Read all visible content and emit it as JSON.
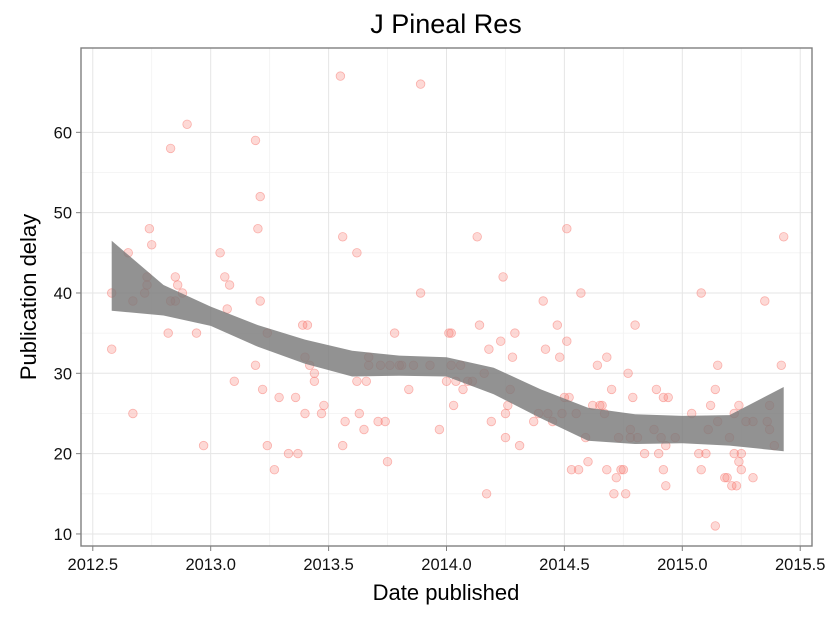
{
  "chart_data": {
    "type": "scatter",
    "title": "J Pineal Res",
    "xlabel": "Date published",
    "ylabel": "Publication delay",
    "xlim": [
      2012.45,
      2015.55
    ],
    "ylim": [
      8.5,
      70.5
    ],
    "x_ticks": [
      2012.5,
      2013.0,
      2013.5,
      2014.0,
      2014.5,
      2015.0,
      2015.5
    ],
    "x_tick_labels": [
      "2012.5",
      "2013.0",
      "2013.5",
      "2014.0",
      "2014.5",
      "2015.0",
      "2015.5"
    ],
    "y_ticks": [
      10,
      20,
      30,
      40,
      50,
      60
    ],
    "y_tick_labels": [
      "10",
      "20",
      "30",
      "40",
      "50",
      "60"
    ],
    "grid": true,
    "point_color": "#f8766d",
    "smooth_band_color": "#7a7a7a",
    "points": [
      [
        2012.58,
        40
      ],
      [
        2012.58,
        33
      ],
      [
        2012.65,
        45
      ],
      [
        2012.67,
        25
      ],
      [
        2012.67,
        39
      ],
      [
        2012.72,
        40
      ],
      [
        2012.73,
        41
      ],
      [
        2012.73,
        42
      ],
      [
        2012.74,
        48
      ],
      [
        2012.75,
        46
      ],
      [
        2012.82,
        35
      ],
      [
        2012.83,
        58
      ],
      [
        2012.83,
        39
      ],
      [
        2012.85,
        42
      ],
      [
        2012.85,
        39
      ],
      [
        2012.86,
        41
      ],
      [
        2012.88,
        40
      ],
      [
        2012.9,
        61
      ],
      [
        2012.94,
        35
      ],
      [
        2012.97,
        21
      ],
      [
        2013.04,
        45
      ],
      [
        2013.06,
        42
      ],
      [
        2013.07,
        38
      ],
      [
        2013.08,
        41
      ],
      [
        2013.1,
        29
      ],
      [
        2013.19,
        59
      ],
      [
        2013.19,
        31
      ],
      [
        2013.2,
        48
      ],
      [
        2013.21,
        52
      ],
      [
        2013.21,
        39
      ],
      [
        2013.22,
        28
      ],
      [
        2013.24,
        21
      ],
      [
        2013.24,
        35
      ],
      [
        2013.27,
        18
      ],
      [
        2013.29,
        27
      ],
      [
        2013.33,
        20
      ],
      [
        2013.36,
        27
      ],
      [
        2013.37,
        20
      ],
      [
        2013.39,
        36
      ],
      [
        2013.4,
        32
      ],
      [
        2013.4,
        25
      ],
      [
        2013.41,
        36
      ],
      [
        2013.42,
        31
      ],
      [
        2013.44,
        30
      ],
      [
        2013.44,
        29
      ],
      [
        2013.47,
        25
      ],
      [
        2013.48,
        26
      ],
      [
        2013.55,
        67
      ],
      [
        2013.56,
        47
      ],
      [
        2013.56,
        21
      ],
      [
        2013.57,
        24
      ],
      [
        2013.62,
        45
      ],
      [
        2013.62,
        29
      ],
      [
        2013.63,
        25
      ],
      [
        2013.65,
        23
      ],
      [
        2013.66,
        29
      ],
      [
        2013.67,
        31
      ],
      [
        2013.67,
        32
      ],
      [
        2013.71,
        24
      ],
      [
        2013.72,
        31
      ],
      [
        2013.74,
        24
      ],
      [
        2013.75,
        19
      ],
      [
        2013.76,
        31
      ],
      [
        2013.78,
        35
      ],
      [
        2013.8,
        31
      ],
      [
        2013.81,
        31
      ],
      [
        2013.84,
        28
      ],
      [
        2013.86,
        31
      ],
      [
        2013.89,
        66
      ],
      [
        2013.89,
        40
      ],
      [
        2013.93,
        31
      ],
      [
        2013.97,
        23
      ],
      [
        2014.0,
        29
      ],
      [
        2014.01,
        35
      ],
      [
        2014.02,
        35
      ],
      [
        2014.02,
        31
      ],
      [
        2014.03,
        26
      ],
      [
        2014.04,
        29
      ],
      [
        2014.06,
        31
      ],
      [
        2014.07,
        28
      ],
      [
        2014.09,
        29
      ],
      [
        2014.11,
        29
      ],
      [
        2014.13,
        47
      ],
      [
        2014.14,
        36
      ],
      [
        2014.16,
        30
      ],
      [
        2014.17,
        15
      ],
      [
        2014.18,
        33
      ],
      [
        2014.19,
        24
      ],
      [
        2014.23,
        34
      ],
      [
        2014.24,
        42
      ],
      [
        2014.25,
        25
      ],
      [
        2014.25,
        22
      ],
      [
        2014.26,
        26
      ],
      [
        2014.27,
        28
      ],
      [
        2014.28,
        32
      ],
      [
        2014.29,
        35
      ],
      [
        2014.31,
        21
      ],
      [
        2014.37,
        24
      ],
      [
        2014.39,
        25
      ],
      [
        2014.41,
        39
      ],
      [
        2014.42,
        33
      ],
      [
        2014.43,
        25
      ],
      [
        2014.45,
        24
      ],
      [
        2014.47,
        36
      ],
      [
        2014.48,
        32
      ],
      [
        2014.49,
        25
      ],
      [
        2014.5,
        27
      ],
      [
        2014.51,
        34
      ],
      [
        2014.51,
        48
      ],
      [
        2014.52,
        27
      ],
      [
        2014.53,
        18
      ],
      [
        2014.55,
        25
      ],
      [
        2014.56,
        18
      ],
      [
        2014.57,
        40
      ],
      [
        2014.59,
        22
      ],
      [
        2014.6,
        19
      ],
      [
        2014.62,
        26
      ],
      [
        2014.64,
        31
      ],
      [
        2014.65,
        26
      ],
      [
        2014.66,
        26
      ],
      [
        2014.67,
        25
      ],
      [
        2014.68,
        18
      ],
      [
        2014.68,
        32
      ],
      [
        2014.7,
        28
      ],
      [
        2014.71,
        15
      ],
      [
        2014.72,
        17
      ],
      [
        2014.73,
        22
      ],
      [
        2014.74,
        18
      ],
      [
        2014.75,
        18
      ],
      [
        2014.76,
        15
      ],
      [
        2014.77,
        30
      ],
      [
        2014.78,
        23
      ],
      [
        2014.78,
        22
      ],
      [
        2014.79,
        27
      ],
      [
        2014.8,
        36
      ],
      [
        2014.81,
        22
      ],
      [
        2014.84,
        20
      ],
      [
        2014.88,
        23
      ],
      [
        2014.89,
        28
      ],
      [
        2014.9,
        20
      ],
      [
        2014.91,
        22
      ],
      [
        2014.92,
        27
      ],
      [
        2014.92,
        18
      ],
      [
        2014.93,
        16
      ],
      [
        2014.93,
        21
      ],
      [
        2014.94,
        27
      ],
      [
        2014.97,
        22
      ],
      [
        2015.04,
        25
      ],
      [
        2015.07,
        20
      ],
      [
        2015.08,
        40
      ],
      [
        2015.08,
        18
      ],
      [
        2015.1,
        20
      ],
      [
        2015.11,
        23
      ],
      [
        2015.12,
        26
      ],
      [
        2015.14,
        11
      ],
      [
        2015.14,
        28
      ],
      [
        2015.15,
        31
      ],
      [
        2015.15,
        24
      ],
      [
        2015.18,
        17
      ],
      [
        2015.19,
        17
      ],
      [
        2015.2,
        22
      ],
      [
        2015.21,
        16
      ],
      [
        2015.22,
        25
      ],
      [
        2015.22,
        20
      ],
      [
        2015.23,
        16
      ],
      [
        2015.24,
        26
      ],
      [
        2015.24,
        19
      ],
      [
        2015.25,
        20
      ],
      [
        2015.25,
        18
      ],
      [
        2015.27,
        24
      ],
      [
        2015.3,
        17
      ],
      [
        2015.3,
        24
      ],
      [
        2015.35,
        39
      ],
      [
        2015.36,
        24
      ],
      [
        2015.37,
        23
      ],
      [
        2015.37,
        26
      ],
      [
        2015.39,
        21
      ],
      [
        2015.42,
        31
      ],
      [
        2015.43,
        47
      ]
    ],
    "smooth_band": {
      "x": [
        2012.58,
        2012.8,
        2013.0,
        2013.2,
        2013.4,
        2013.6,
        2013.8,
        2014.0,
        2014.2,
        2014.4,
        2014.6,
        2014.8,
        2015.0,
        2015.2,
        2015.43
      ],
      "upper": [
        46.5,
        41.0,
        38.3,
        36.0,
        34.2,
        32.8,
        32.2,
        32.0,
        30.7,
        28.0,
        25.7,
        24.9,
        24.7,
        24.8,
        28.3
      ],
      "lower": [
        37.8,
        37.2,
        35.9,
        33.3,
        31.2,
        29.6,
        29.7,
        29.6,
        27.4,
        24.4,
        21.6,
        21.2,
        21.3,
        21.0,
        20.3
      ]
    }
  }
}
